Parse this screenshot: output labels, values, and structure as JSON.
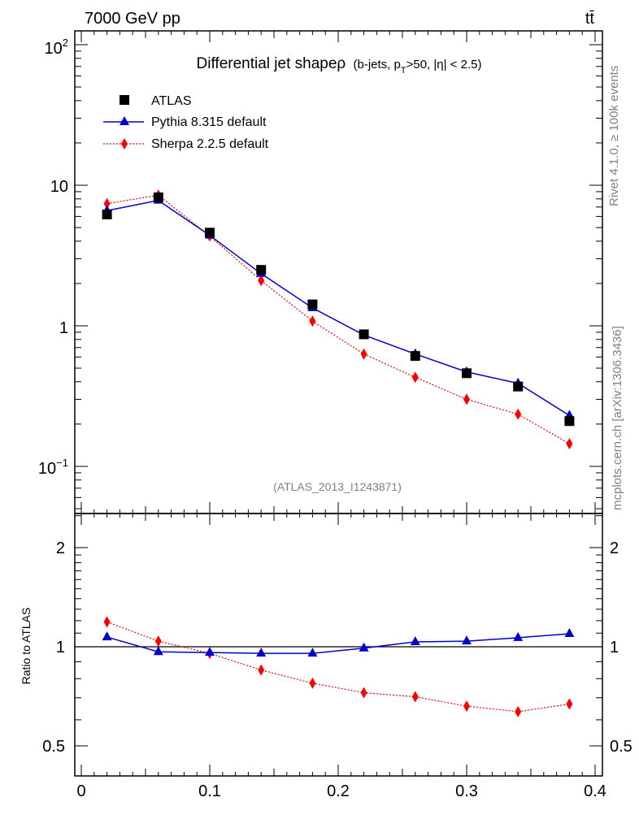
{
  "header": {
    "energy_label": "7000 GeV pp",
    "process_label": "tt̄"
  },
  "side_labels": {
    "rivet": "Rivet 4.1.0, ≥ 100k events",
    "mcplots": "mcplots.cern.ch [arXiv:1306.3436]"
  },
  "chart_data": [
    {
      "type": "line",
      "panel": "main",
      "title_main": "Differential jet shapeρ",
      "title_sub_pre": "(b-jets, p",
      "title_sub_subscript": "T",
      "title_sub_post": ">50, |η| < 2.5)",
      "analysis_label": "(ATLAS_2013_I1243871)",
      "yscale": "log",
      "xlim": [
        0,
        0.4
      ],
      "ylim": [
        0.05,
        130
      ],
      "xticks": [
        "0",
        "0.1",
        "0.2",
        "0.3",
        "0.4"
      ],
      "ytick_labels": {
        "p2": "10",
        "p2_exp": "2",
        "p1": "10",
        "p0": "1",
        "m1": "10",
        "m1_exp": "−1"
      },
      "x": [
        0.02,
        0.06,
        0.1,
        0.14,
        0.18,
        0.22,
        0.26,
        0.3,
        0.34,
        0.38
      ],
      "series": [
        {
          "name": "ATLAS",
          "style": "marker",
          "color": "#000000",
          "marker": "square",
          "values": [
            6.2,
            8.2,
            4.6,
            2.5,
            1.42,
            0.87,
            0.61,
            0.46,
            0.37,
            0.21
          ]
        },
        {
          "name": "Pythia 8.315 default",
          "style": "solid",
          "color": "#0000cc",
          "marker": "triangle",
          "values": [
            6.6,
            7.8,
            4.4,
            2.35,
            1.34,
            0.86,
            0.63,
            0.47,
            0.39,
            0.23
          ]
        },
        {
          "name": "Sherpa 2.2.5 default",
          "style": "dotted",
          "color": "#ff0000",
          "marker": "diamond",
          "values": [
            7.4,
            8.5,
            4.35,
            2.1,
            1.08,
            0.63,
            0.43,
            0.3,
            0.235,
            0.145
          ]
        }
      ],
      "legend_position": "top-left"
    },
    {
      "type": "line",
      "panel": "ratio",
      "ylabel": "Ratio to ATLAS",
      "yscale": "log",
      "ylim": [
        0.4,
        2.5
      ],
      "yticks": [
        2,
        1,
        0.5
      ],
      "ytick_labels": [
        "2",
        "1",
        "0.5"
      ],
      "reference_line": 1,
      "x": [
        0.02,
        0.06,
        0.1,
        0.14,
        0.18,
        0.22,
        0.26,
        0.3,
        0.34,
        0.38
      ],
      "series": [
        {
          "name": "Pythia 8.315 default",
          "color": "#0000cc",
          "marker": "triangle",
          "style": "solid",
          "values": [
            1.07,
            0.965,
            0.96,
            0.955,
            0.955,
            0.99,
            1.035,
            1.04,
            1.065,
            1.095
          ]
        },
        {
          "name": "Sherpa 2.2.5 default",
          "color": "#ff0000",
          "marker": "diamond",
          "style": "dotted",
          "values": [
            1.19,
            1.04,
            0.955,
            0.85,
            0.775,
            0.725,
            0.705,
            0.66,
            0.635,
            0.67
          ]
        }
      ]
    }
  ]
}
